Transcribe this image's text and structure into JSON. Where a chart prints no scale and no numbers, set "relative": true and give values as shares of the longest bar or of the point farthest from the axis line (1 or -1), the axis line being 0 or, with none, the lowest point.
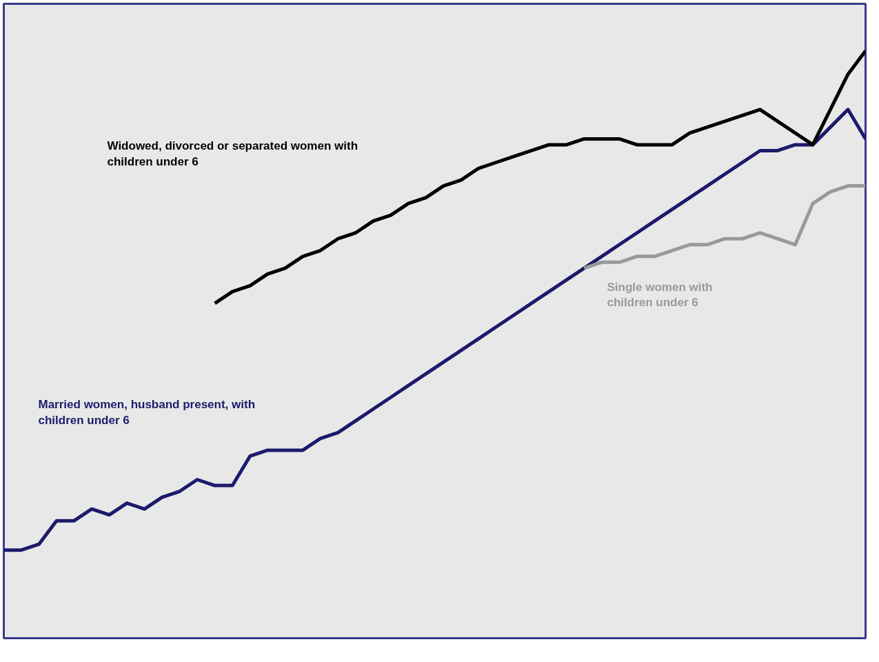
{
  "chart_data": {
    "type": "line",
    "relative": true,
    "tick_labels": false,
    "grid": false,
    "line_style": "solid",
    "marker": "none",
    "categories": [
      null,
      null,
      null,
      null,
      null,
      null,
      null,
      null,
      null,
      null,
      null,
      null,
      null,
      null,
      null,
      null,
      null,
      null,
      null,
      null,
      null,
      null,
      null,
      null,
      null,
      null,
      null,
      null,
      null,
      null,
      null,
      null,
      null,
      null,
      null,
      null,
      null,
      null,
      null,
      null,
      null,
      null,
      null,
      null,
      null,
      null,
      null,
      null,
      null,
      null
    ],
    "series": [
      {
        "color": "#1c1a6b",
        "values": [
          0.15,
          0.15,
          0.16,
          0.2,
          0.2,
          0.22,
          0.21,
          0.23,
          0.22,
          0.24,
          0.25,
          0.27,
          0.26,
          0.26,
          0.31,
          0.32,
          0.32,
          0.32,
          0.34,
          0.35,
          0.37,
          0.39,
          0.41,
          0.43,
          0.45,
          0.47,
          0.49,
          0.51,
          0.53,
          0.55,
          0.57,
          0.59,
          0.61,
          0.63,
          0.65,
          0.67,
          0.69,
          0.71,
          0.73,
          0.75,
          0.77,
          0.79,
          0.81,
          0.83,
          0.83,
          0.84,
          0.84,
          0.87,
          0.9,
          0.85
        ]
      },
      {
        "color": "#000000",
        "values": [
          null,
          null,
          null,
          null,
          null,
          null,
          null,
          null,
          null,
          null,
          null,
          null,
          0.57,
          0.59,
          0.6,
          0.62,
          0.63,
          0.65,
          0.66,
          0.68,
          0.69,
          0.71,
          0.72,
          0.74,
          0.75,
          0.77,
          0.78,
          0.8,
          0.81,
          0.82,
          0.83,
          0.84,
          0.84,
          0.85,
          0.85,
          0.85,
          0.84,
          0.84,
          0.84,
          0.86,
          0.87,
          0.88,
          0.89,
          0.9,
          0.88,
          0.86,
          0.84,
          0.9,
          0.96,
          1.0
        ]
      },
      {
        "color": "#999999",
        "values": [
          null,
          null,
          null,
          null,
          null,
          null,
          null,
          null,
          null,
          null,
          null,
          null,
          null,
          null,
          null,
          null,
          null,
          null,
          null,
          null,
          null,
          null,
          null,
          null,
          null,
          null,
          null,
          null,
          null,
          null,
          null,
          null,
          null,
          0.63,
          0.64,
          0.64,
          0.65,
          0.65,
          0.66,
          0.67,
          0.67,
          0.68,
          0.68,
          0.69,
          0.68,
          0.67,
          0.74,
          0.76,
          0.77,
          0.77
        ]
      }
    ],
    "annotations": [
      "Widowed, divorced or separated women with\nchildren under 6",
      "Married women, husband present, with\nchildren under 6",
      "Single women with\nchildren under 6"
    ]
  }
}
